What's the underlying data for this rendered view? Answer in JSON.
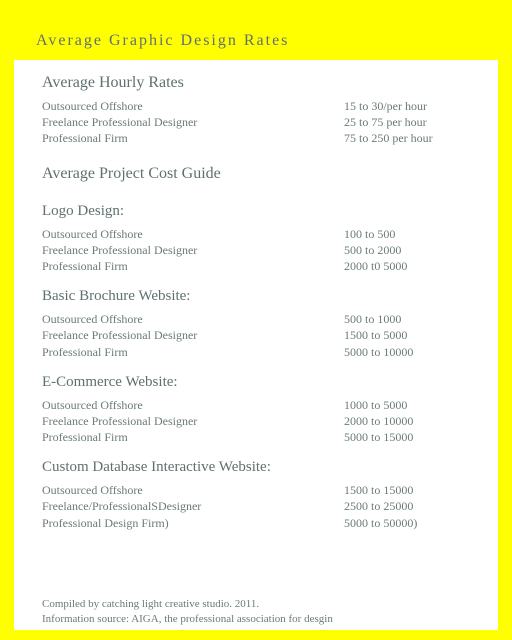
{
  "colors": {
    "border": "#ffff00",
    "inner_bg": "#ffffff",
    "title_bg": "#ffff00",
    "text": "#6b7a7a",
    "heading": "#5f7070"
  },
  "title": "Average Graphic Design Rates",
  "hourly": {
    "heading": "Average Hourly Rates",
    "rows": [
      {
        "label": "Outsourced Offshore",
        "value": "15  to 30/per hour"
      },
      {
        "label": "Freelance Professional Designer",
        "value": "25 to 75 per hour"
      },
      {
        "label": "Professional Firm",
        "value": "75 to 250 per hour"
      }
    ]
  },
  "project_heading": "Average Project Cost Guide",
  "sections": [
    {
      "title": "Logo Design:",
      "rows": [
        {
          "label": "Outsourced Offshore",
          "value": "100 to 500"
        },
        {
          "label": "Freelance Professional Designer",
          "value": "500 to 2000"
        },
        {
          "label": "Professional Firm",
          "value": "2000 t0 5000"
        }
      ]
    },
    {
      "title": "Basic Brochure Website:",
      "rows": [
        {
          "label": "Outsourced Offshore",
          "value": "500 to 1000"
        },
        {
          "label": "Freelance Professional Designer",
          "value": "1500 to 5000"
        },
        {
          "label": "Professional Firm",
          "value": "5000 to 10000"
        }
      ]
    },
    {
      "title": "E-Commerce Website:",
      "rows": [
        {
          "label": "Outsourced Offshore",
          "value": "1000 to 5000"
        },
        {
          "label": "Freelance Professional Designer",
          "value": "2000 to 10000"
        },
        {
          "label": "Professional Firm",
          "value": "5000 to 15000"
        }
      ]
    },
    {
      "title": "Custom Database Interactive Website:",
      "rows": [
        {
          "label": "Outsourced Offshore",
          "value": "1500 to 15000"
        },
        {
          "label": "Freelance/ProfessionalSDesigner",
          "value": "2500 to 25000"
        },
        {
          "label": "Professional Design Firm)",
          "value": "5000 to 50000)"
        }
      ]
    }
  ],
  "footer": {
    "line1": "Compiled by catching light creative studio. 2011.",
    "line2": "Information source: AIGA, the professional association for desgin"
  }
}
